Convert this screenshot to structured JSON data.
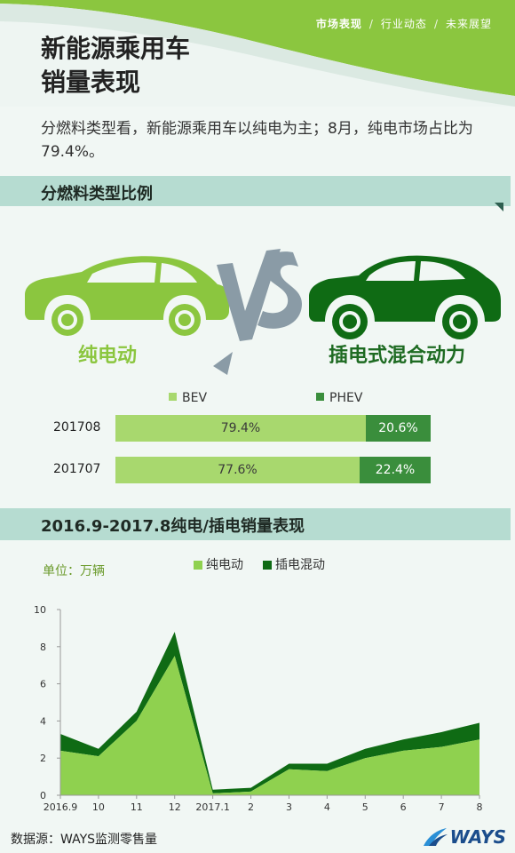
{
  "header": {
    "nav": [
      {
        "label": "市场表现",
        "active": true
      },
      {
        "label": "行业动态",
        "active": false
      },
      {
        "label": "未来展望",
        "active": false
      }
    ],
    "separator": "/",
    "title_line1": "新能源乘用车",
    "title_line2": "销量表现"
  },
  "intro": "分燃料类型看，新能源乘用车以纯电为主；8月，纯电市场占比为79.4%。",
  "section1": {
    "title": "分燃料类型比例",
    "bev_label": "纯电动",
    "phev_label": "插电式混合动力",
    "legend": {
      "bev": "BEV",
      "phev": "PHEV"
    },
    "rows": [
      {
        "month": "201708",
        "bev": "79.4%",
        "phev": "20.6%",
        "bev_value": 79.4
      },
      {
        "month": "201707",
        "bev": "77.6%",
        "phev": "22.4%",
        "bev_value": 77.6
      }
    ]
  },
  "section2": {
    "title": "2016.9-2017.8纯电/插电销量表现",
    "unit": "单位：万辆",
    "legend": {
      "bev": "纯电动",
      "phev": "插电混动"
    }
  },
  "colors": {
    "bev": "#8fd14f",
    "phev": "#0f6b14",
    "bev_bar": "#a8d86e",
    "phev_bar": "#3a8e3c",
    "accent": "#8bc63f"
  },
  "chart_data": [
    {
      "type": "bar",
      "orientation": "horizontal",
      "stacked": true,
      "normalized": true,
      "categories": [
        "201708",
        "201707"
      ],
      "series": [
        {
          "name": "BEV",
          "values": [
            79.4,
            77.6
          ]
        },
        {
          "name": "PHEV",
          "values": [
            20.6,
            22.4
          ]
        }
      ]
    },
    {
      "type": "area",
      "stacked": true,
      "title": "2016.9-2017.8纯电/插电销量表现",
      "ylabel": "单位：万辆",
      "categories": [
        "2016.9",
        "10",
        "11",
        "12",
        "2017.1",
        "2",
        "3",
        "4",
        "5",
        "6",
        "7",
        "8"
      ],
      "ylim": [
        0,
        10
      ],
      "yticks": [
        0,
        2,
        4,
        6,
        8,
        10
      ],
      "series": [
        {
          "name": "纯电动",
          "values": [
            2.4,
            2.1,
            4.0,
            7.5,
            0.1,
            0.2,
            1.4,
            1.3,
            2.0,
            2.4,
            2.6,
            3.0
          ]
        },
        {
          "name": "插电混动",
          "values": [
            0.9,
            0.4,
            0.5,
            1.3,
            0.2,
            0.2,
            0.3,
            0.4,
            0.5,
            0.6,
            0.8,
            0.9
          ]
        }
      ],
      "source": "数据源：WAYS监测零售量"
    }
  ],
  "footer": {
    "source": "数据源：WAYS监测零售量",
    "logo": "WAYS"
  }
}
